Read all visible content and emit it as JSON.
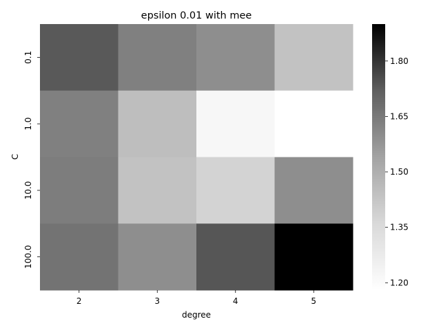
{
  "chart_data": {
    "type": "heatmap",
    "title": "epsilon 0.01 with mee",
    "xlabel": "degree",
    "ylabel": "C",
    "x_categories": [
      "2",
      "3",
      "4",
      "5"
    ],
    "y_categories": [
      "0.1",
      "1.0",
      "10.0",
      "100.0"
    ],
    "values": [
      [
        1.6,
        1.48,
        1.44,
        1.3
      ],
      [
        1.48,
        1.31,
        1.19,
        1.18
      ],
      [
        1.49,
        1.3,
        1.26,
        1.44
      ],
      [
        1.52,
        1.44,
        1.61,
        1.9
      ]
    ],
    "colormap": "Greys",
    "vmin": 1.18,
    "vmax": 1.9,
    "colorbar_ticks": [
      "1.20",
      "1.35",
      "1.50",
      "1.65",
      "1.80"
    ],
    "color_low": "#ffffff",
    "color_high": "#000000"
  }
}
